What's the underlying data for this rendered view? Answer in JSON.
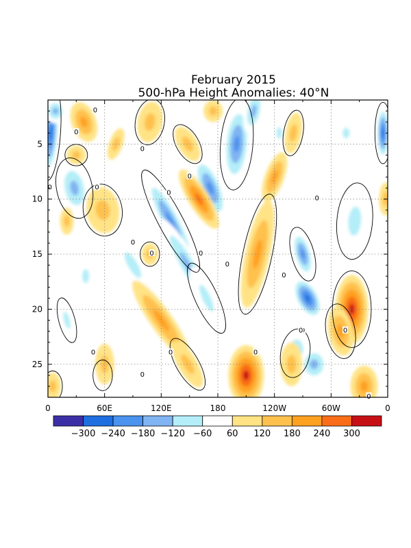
{
  "chart_data": {
    "type": "heatmap",
    "title": "February 2015",
    "subtitle": "500-hPa Height Anomalies: 40°N",
    "xlabel": "",
    "ylabel": "",
    "x_ticks": [
      {
        "lon": 0,
        "label": "0"
      },
      {
        "lon": 60,
        "label": "60E"
      },
      {
        "lon": 120,
        "label": "120E"
      },
      {
        "lon": 180,
        "label": "180"
      },
      {
        "lon": 240,
        "label": "120W"
      },
      {
        "lon": 300,
        "label": "60W"
      },
      {
        "lon": 360,
        "label": "0"
      }
    ],
    "y_ticks": [
      5,
      10,
      15,
      20,
      25
    ],
    "xlim": [
      0,
      360
    ],
    "ylim": [
      1,
      28
    ],
    "y_direction": "downward",
    "grid": "dotted",
    "colorbar": {
      "levels": [
        -300,
        -240,
        -180,
        -120,
        -60,
        60,
        120,
        180,
        240,
        300
      ],
      "labels": [
        "−300",
        "−240",
        "−180",
        "−120",
        "−60",
        "60",
        "120",
        "180",
        "240",
        "300"
      ],
      "colors": [
        "#3c2fa6",
        "#1f6fe0",
        "#4a93ee",
        "#80b4f2",
        "#b4eef8",
        "#ffffff",
        "#ffe385",
        "#ffc14e",
        "#ffa120",
        "#f96d18",
        "#c71016"
      ]
    },
    "zero_contour_label": "0",
    "features": [
      {
        "sign": "negative",
        "lon": [
          0,
          8
        ],
        "day": [
          1,
          10
        ],
        "peak": -300
      },
      {
        "sign": "negative",
        "lon": [
          10,
          40
        ],
        "day": [
          6,
          13
        ],
        "peak": -200
      },
      {
        "sign": "negative",
        "lon": [
          60,
          115
        ],
        "day": [
          9,
          27
        ],
        "peak": -180
      },
      {
        "sign": "negative",
        "lon": [
          115,
          175
        ],
        "day": [
          6,
          22
        ],
        "peak": -240
      },
      {
        "sign": "negative",
        "lon": [
          185,
          215
        ],
        "day": [
          1,
          16
        ],
        "peak": -240
      },
      {
        "sign": "negative",
        "lon": [
          255,
          300
        ],
        "day": [
          14,
          22
        ],
        "peak": -300
      },
      {
        "sign": "negative",
        "lon": [
          235,
          295
        ],
        "day": [
          22,
          27
        ],
        "peak": -180
      },
      {
        "sign": "negative",
        "lon": [
          345,
          360
        ],
        "day": [
          1,
          8
        ],
        "peak": -300
      },
      {
        "sign": "positive",
        "lon": [
          25,
          60
        ],
        "day": [
          1,
          7
        ],
        "peak": 180
      },
      {
        "sign": "positive",
        "lon": [
          150,
          175
        ],
        "day": [
          6,
          13
        ],
        "peak": 240
      },
      {
        "sign": "positive",
        "lon": [
          95,
          160
        ],
        "day": [
          16,
          27
        ],
        "peak": 240
      },
      {
        "sign": "positive",
        "lon": [
          195,
          245
        ],
        "day": [
          9,
          28
        ],
        "peak": 300
      },
      {
        "sign": "positive",
        "lon": [
          240,
          262
        ],
        "day": [
          4,
          10
        ],
        "peak": 180
      },
      {
        "sign": "positive",
        "lon": [
          295,
          340
        ],
        "day": [
          15,
          28
        ],
        "peak": 300
      }
    ]
  }
}
